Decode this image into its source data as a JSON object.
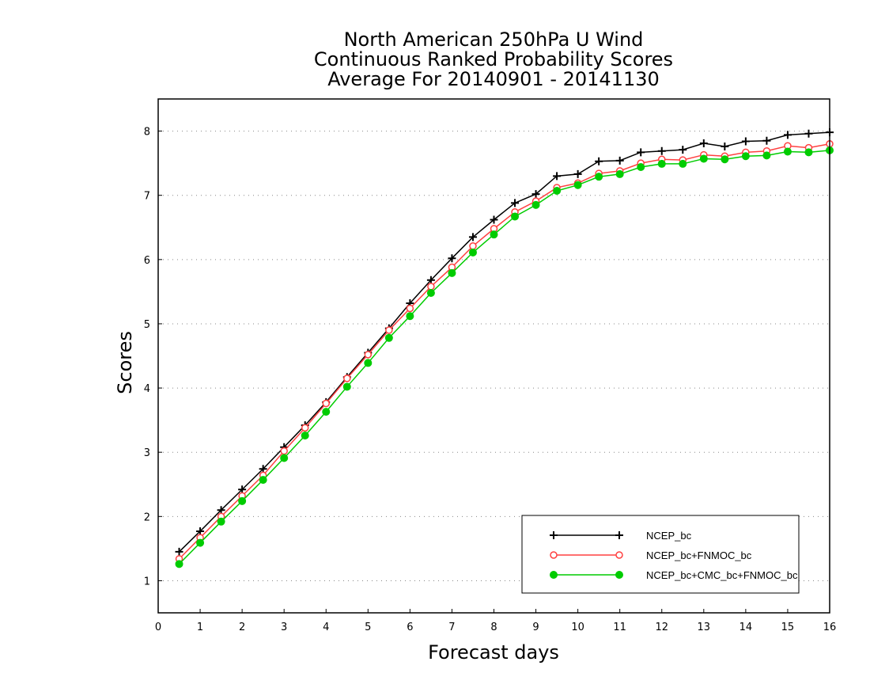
{
  "chart_data": {
    "type": "line",
    "title": [
      "North American 250hPa U Wind",
      "Continuous Ranked Probability Scores",
      "Average For 20140901 - 20141130"
    ],
    "xlabel": "Forecast days",
    "ylabel": "Scores",
    "xlim": [
      0,
      16
    ],
    "ylim": [
      0.5,
      8.5
    ],
    "xticks": [
      0,
      1,
      2,
      3,
      4,
      5,
      6,
      7,
      8,
      9,
      10,
      11,
      12,
      13,
      14,
      15,
      16
    ],
    "yticks": [
      1,
      2,
      3,
      4,
      5,
      6,
      7,
      8
    ],
    "grid": "horizontal-dotted",
    "legend_position": "bottom-right",
    "x": [
      0.5,
      1,
      1.5,
      2,
      2.5,
      3,
      3.5,
      4,
      4.5,
      5,
      5.5,
      6,
      6.5,
      7,
      7.5,
      8,
      8.5,
      9,
      9.5,
      10,
      10.5,
      11,
      11.5,
      12,
      12.5,
      13,
      13.5,
      14,
      14.5,
      15,
      15.5,
      16
    ],
    "series": [
      {
        "name": "NCEP_bc",
        "color": "#000000",
        "marker": "plus",
        "values": [
          1.45,
          1.77,
          2.1,
          2.42,
          2.74,
          3.08,
          3.42,
          3.78,
          4.17,
          4.55,
          4.93,
          5.32,
          5.68,
          6.02,
          6.35,
          6.62,
          6.88,
          7.02,
          7.3,
          7.33,
          7.53,
          7.54,
          7.67,
          7.69,
          7.71,
          7.81,
          7.76,
          7.84,
          7.85,
          7.94,
          7.96,
          7.98
        ]
      },
      {
        "name": "NCEP_bc+FNMOC_bc",
        "color": "#ff4040",
        "marker": "open-circle",
        "values": [
          1.34,
          1.67,
          2.0,
          2.32,
          2.64,
          3.02,
          3.38,
          3.76,
          4.15,
          4.52,
          4.9,
          5.24,
          5.58,
          5.88,
          6.21,
          6.48,
          6.74,
          6.91,
          7.12,
          7.19,
          7.34,
          7.38,
          7.5,
          7.56,
          7.55,
          7.63,
          7.61,
          7.67,
          7.69,
          7.77,
          7.74,
          7.8
        ]
      },
      {
        "name": "NCEP_bc+CMC_bc+FNMOC_bc",
        "color": "#00cc00",
        "marker": "filled-circle",
        "values": [
          1.26,
          1.59,
          1.92,
          2.24,
          2.57,
          2.91,
          3.26,
          3.63,
          4.02,
          4.39,
          4.78,
          5.12,
          5.48,
          5.79,
          6.11,
          6.39,
          6.67,
          6.85,
          7.07,
          7.16,
          7.29,
          7.33,
          7.44,
          7.49,
          7.49,
          7.57,
          7.56,
          7.61,
          7.62,
          7.68,
          7.67,
          7.7
        ]
      }
    ]
  }
}
